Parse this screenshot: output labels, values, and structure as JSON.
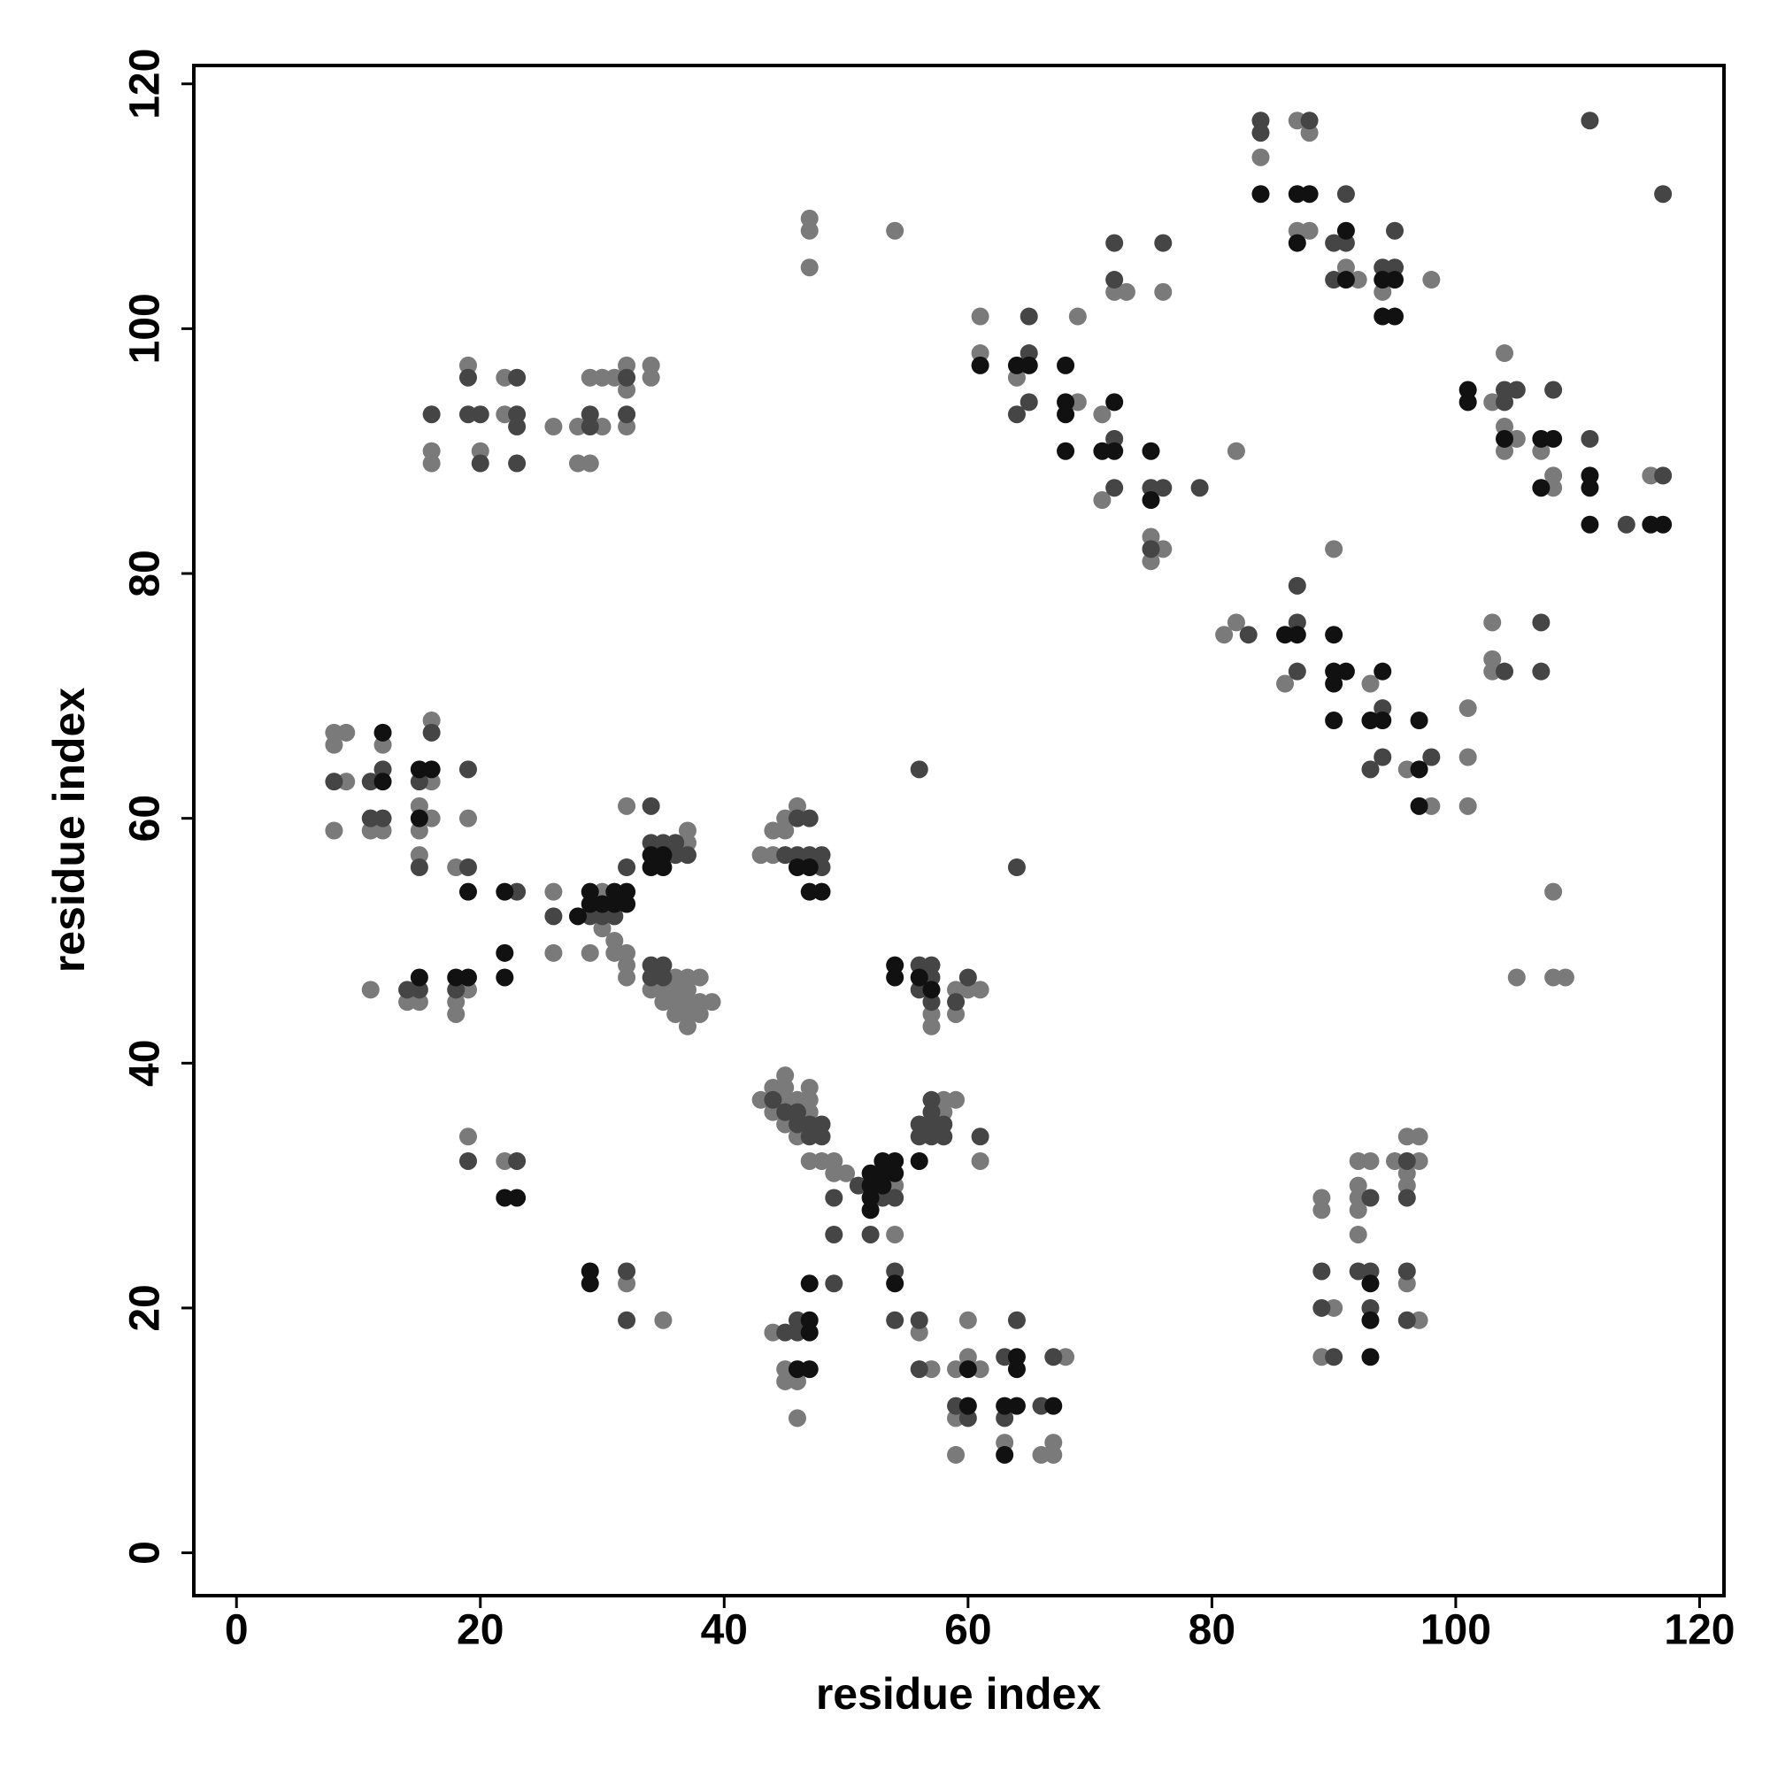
{
  "chart_data": {
    "type": "scatter",
    "x_label": "residue index",
    "y_label": "residue index",
    "xlim": [
      -3.5,
      122
    ],
    "ylim": [
      -3.5,
      121.5
    ],
    "xticks": [
      0,
      20,
      40,
      60,
      80,
      100,
      120
    ],
    "yticks": [
      0,
      20,
      40,
      60,
      80,
      100,
      120
    ],
    "series": [
      {
        "color": "#7a7a7a",
        "x": [
          84,
          87,
          88,
          87,
          88,
          92,
          91,
          94,
          98,
          61,
          61,
          64,
          69,
          69,
          71,
          71,
          75,
          75,
          76,
          82,
          72,
          73,
          76,
          103,
          104,
          104,
          104,
          105,
          107,
          108,
          108,
          116,
          81,
          82,
          86,
          90,
          93,
          96,
          98,
          101,
          101,
          101,
          103,
          103,
          103,
          108,
          105,
          108,
          109,
          16,
          16,
          19,
          20,
          22,
          22,
          26,
          28,
          28,
          29,
          29,
          30,
          31,
          30,
          32,
          32,
          32,
          34,
          34,
          47,
          47,
          47,
          54,
          8,
          9,
          8,
          9,
          8,
          12,
          11,
          12,
          16,
          16,
          15,
          16,
          15,
          15,
          19,
          18,
          26,
          26,
          30,
          30,
          31,
          31,
          29,
          32,
          32,
          32,
          32,
          37,
          37,
          34,
          35,
          35,
          36,
          36,
          36,
          36,
          37,
          37,
          37,
          37,
          37,
          38,
          38,
          38,
          39,
          11,
          14,
          15,
          18,
          18,
          19,
          43,
          44,
          44,
          45,
          45,
          46,
          57,
          57,
          59,
          59,
          60,
          61,
          19,
          22,
          32,
          35,
          43,
          44,
          44,
          45,
          45,
          45,
          45,
          46,
          46,
          47,
          47,
          47,
          47,
          48,
          49,
          49,
          50,
          54,
          54,
          58,
          58,
          59,
          61,
          44,
          45,
          45,
          46,
          46,
          56,
          57,
          59,
          59,
          60,
          60,
          61,
          59,
          63,
          66,
          68,
          67,
          67,
          89,
          89,
          89,
          90,
          92,
          92,
          92,
          92,
          92,
          93,
          95,
          96,
          96,
          96,
          97,
          97,
          96,
          97
        ],
        "values": [
          114,
          117,
          116,
          108,
          108,
          104,
          105,
          103,
          104,
          101,
          98,
          96,
          101,
          94,
          93,
          86,
          83,
          81,
          82,
          90,
          103,
          103,
          103,
          94,
          98,
          92,
          90,
          91,
          90,
          88,
          87,
          88,
          75,
          76,
          71,
          82,
          71,
          64,
          61,
          69,
          65,
          61,
          76,
          73,
          72,
          54,
          47,
          47,
          47,
          90,
          89,
          97,
          90,
          96,
          93,
          92,
          92,
          89,
          89,
          96,
          96,
          96,
          92,
          97,
          95,
          92,
          97,
          96,
          109,
          108,
          105,
          108,
          67,
          67,
          66,
          63,
          59,
          66,
          59,
          59,
          68,
          63,
          61,
          60,
          59,
          57,
          60,
          56,
          54,
          49,
          54,
          51,
          50,
          49,
          49,
          49,
          48,
          47,
          61,
          59,
          58,
          46,
          46,
          45,
          47,
          46,
          45,
          44,
          47,
          46,
          45,
          44,
          43,
          47,
          45,
          44,
          45,
          46,
          45,
          45,
          45,
          44,
          46,
          57,
          59,
          57,
          60,
          59,
          61,
          44,
          43,
          46,
          44,
          46,
          46,
          34,
          32,
          22,
          19,
          37,
          38,
          36,
          39,
          38,
          37,
          35,
          37,
          34,
          38,
          37,
          36,
          32,
          32,
          32,
          31,
          31,
          30,
          26,
          37,
          36,
          37,
          32,
          18,
          15,
          14,
          14,
          11,
          18,
          15,
          15,
          11,
          19,
          16,
          15,
          8,
          9,
          8,
          16,
          9,
          8,
          29,
          28,
          16,
          20,
          32,
          30,
          29,
          28,
          26,
          32,
          32,
          34,
          31,
          30,
          34,
          32,
          22,
          19
        ]
      },
      {
        "color": "#454545",
        "x": [
          84,
          84,
          88,
          91,
          90,
          91,
          90,
          94,
          95,
          95,
          111,
          117,
          65,
          64,
          65,
          65,
          72,
          72,
          76,
          72,
          72,
          75,
          76,
          79,
          75,
          104,
          105,
          104,
          108,
          111,
          117,
          114,
          83,
          87,
          87,
          87,
          94,
          94,
          93,
          98,
          104,
          107,
          107,
          16,
          19,
          20,
          19,
          23,
          23,
          23,
          20,
          23,
          29,
          29,
          32,
          32,
          8,
          11,
          12,
          11,
          12,
          16,
          15,
          15,
          19,
          19,
          23,
          26,
          29,
          30,
          31,
          32,
          34,
          34,
          35,
          36,
          36,
          37,
          34,
          34,
          35,
          35,
          14,
          15,
          18,
          45,
          46,
          46,
          47,
          47,
          48,
          48,
          56,
          56,
          57,
          57,
          57,
          60,
          59,
          56,
          64,
          19,
          23,
          32,
          32,
          44,
          45,
          46,
          46,
          47,
          48,
          48,
          47,
          49,
          49,
          51,
          53,
          54,
          52,
          56,
          56,
          57,
          57,
          57,
          57,
          58,
          58,
          61,
          54,
          54,
          49,
          46,
          46,
          45,
          56,
          56,
          59,
          60,
          63,
          63,
          64,
          66,
          67,
          89,
          89,
          90,
          92,
          93,
          93,
          96,
          96,
          96,
          96,
          93
        ],
        "values": [
          117,
          116,
          117,
          111,
          107,
          107,
          104,
          105,
          108,
          105,
          117,
          111,
          98,
          93,
          94,
          101,
          107,
          104,
          107,
          91,
          87,
          87,
          87,
          87,
          82,
          95,
          95,
          94,
          95,
          91,
          88,
          84,
          75,
          76,
          79,
          72,
          69,
          65,
          64,
          65,
          72,
          76,
          72,
          93,
          93,
          93,
          96,
          96,
          93,
          92,
          89,
          89,
          93,
          92,
          96,
          93,
          63,
          63,
          64,
          60,
          60,
          67,
          63,
          56,
          64,
          56,
          54,
          52,
          52,
          52,
          52,
          56,
          61,
          58,
          58,
          58,
          57,
          57,
          48,
          47,
          48,
          47,
          46,
          46,
          46,
          57,
          60,
          57,
          60,
          57,
          57,
          56,
          48,
          46,
          48,
          47,
          45,
          47,
          45,
          64,
          56,
          32,
          32,
          23,
          19,
          37,
          36,
          36,
          35,
          35,
          35,
          34,
          34,
          29,
          26,
          30,
          29,
          29,
          26,
          35,
          34,
          37,
          36,
          35,
          34,
          35,
          34,
          34,
          23,
          19,
          22,
          19,
          18,
          18,
          19,
          15,
          12,
          11,
          11,
          16,
          19,
          12,
          16,
          23,
          20,
          16,
          23,
          23,
          20,
          32,
          29,
          23,
          19,
          29
        ]
      },
      {
        "color": "#111111",
        "x": [
          84,
          87,
          88,
          87,
          91,
          91,
          94,
          95,
          94,
          95,
          61,
          64,
          65,
          68,
          68,
          68,
          72,
          68,
          71,
          72,
          75,
          75,
          101,
          101,
          104,
          107,
          108,
          107,
          111,
          111,
          111,
          116,
          117,
          86,
          87,
          90,
          90,
          90,
          91,
          90,
          93,
          94,
          94,
          97,
          97,
          97,
          12,
          12,
          15,
          16,
          15,
          19,
          22,
          22,
          22,
          28,
          29,
          29,
          30,
          31,
          31,
          32,
          32,
          34,
          34,
          35,
          35,
          15,
          18,
          19,
          46,
          47,
          47,
          48,
          54,
          54,
          56,
          57,
          22,
          23,
          29,
          29,
          52,
          52,
          52,
          52,
          53,
          53,
          53,
          54,
          54,
          56,
          54,
          47,
          47,
          47,
          47,
          46,
          60,
          60,
          63,
          63,
          64,
          64,
          64,
          67,
          93,
          93,
          93
        ],
        "values": [
          111,
          111,
          111,
          107,
          108,
          104,
          104,
          104,
          101,
          101,
          97,
          97,
          97,
          97,
          94,
          93,
          94,
          90,
          90,
          90,
          90,
          86,
          95,
          94,
          91,
          91,
          91,
          87,
          88,
          87,
          84,
          84,
          84,
          75,
          75,
          75,
          72,
          71,
          72,
          68,
          68,
          72,
          68,
          68,
          64,
          61,
          67,
          63,
          64,
          64,
          60,
          54,
          54,
          49,
          47,
          52,
          54,
          53,
          53,
          54,
          53,
          54,
          53,
          57,
          56,
          57,
          56,
          47,
          47,
          47,
          56,
          56,
          54,
          54,
          48,
          47,
          47,
          46,
          29,
          29,
          23,
          22,
          31,
          30,
          29,
          28,
          32,
          31,
          30,
          32,
          31,
          32,
          22,
          22,
          19,
          18,
          15,
          15,
          15,
          12,
          12,
          8,
          15,
          12,
          16,
          12,
          19,
          16,
          22
        ]
      }
    ]
  }
}
